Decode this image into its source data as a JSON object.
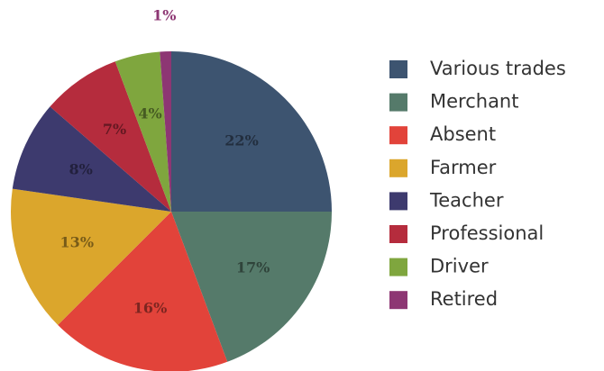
{
  "chart_data": {
    "type": "pie",
    "categories": [
      "Various trades",
      "Merchant",
      "Absent",
      "Farmer",
      "Teacher",
      "Professional",
      "Driver",
      "Retired"
    ],
    "values": [
      22,
      17,
      16,
      13,
      8,
      7,
      4,
      1
    ],
    "value_labels": [
      "22%",
      "17%",
      "16%",
      "13%",
      "8%",
      "7%",
      "4%",
      "1%"
    ],
    "colors": [
      "#3d5470",
      "#557a6a",
      "#e2433a",
      "#dba62c",
      "#3d3a6e",
      "#b52c3d",
      "#7fa63e",
      "#8d3673"
    ],
    "legend": "right"
  }
}
